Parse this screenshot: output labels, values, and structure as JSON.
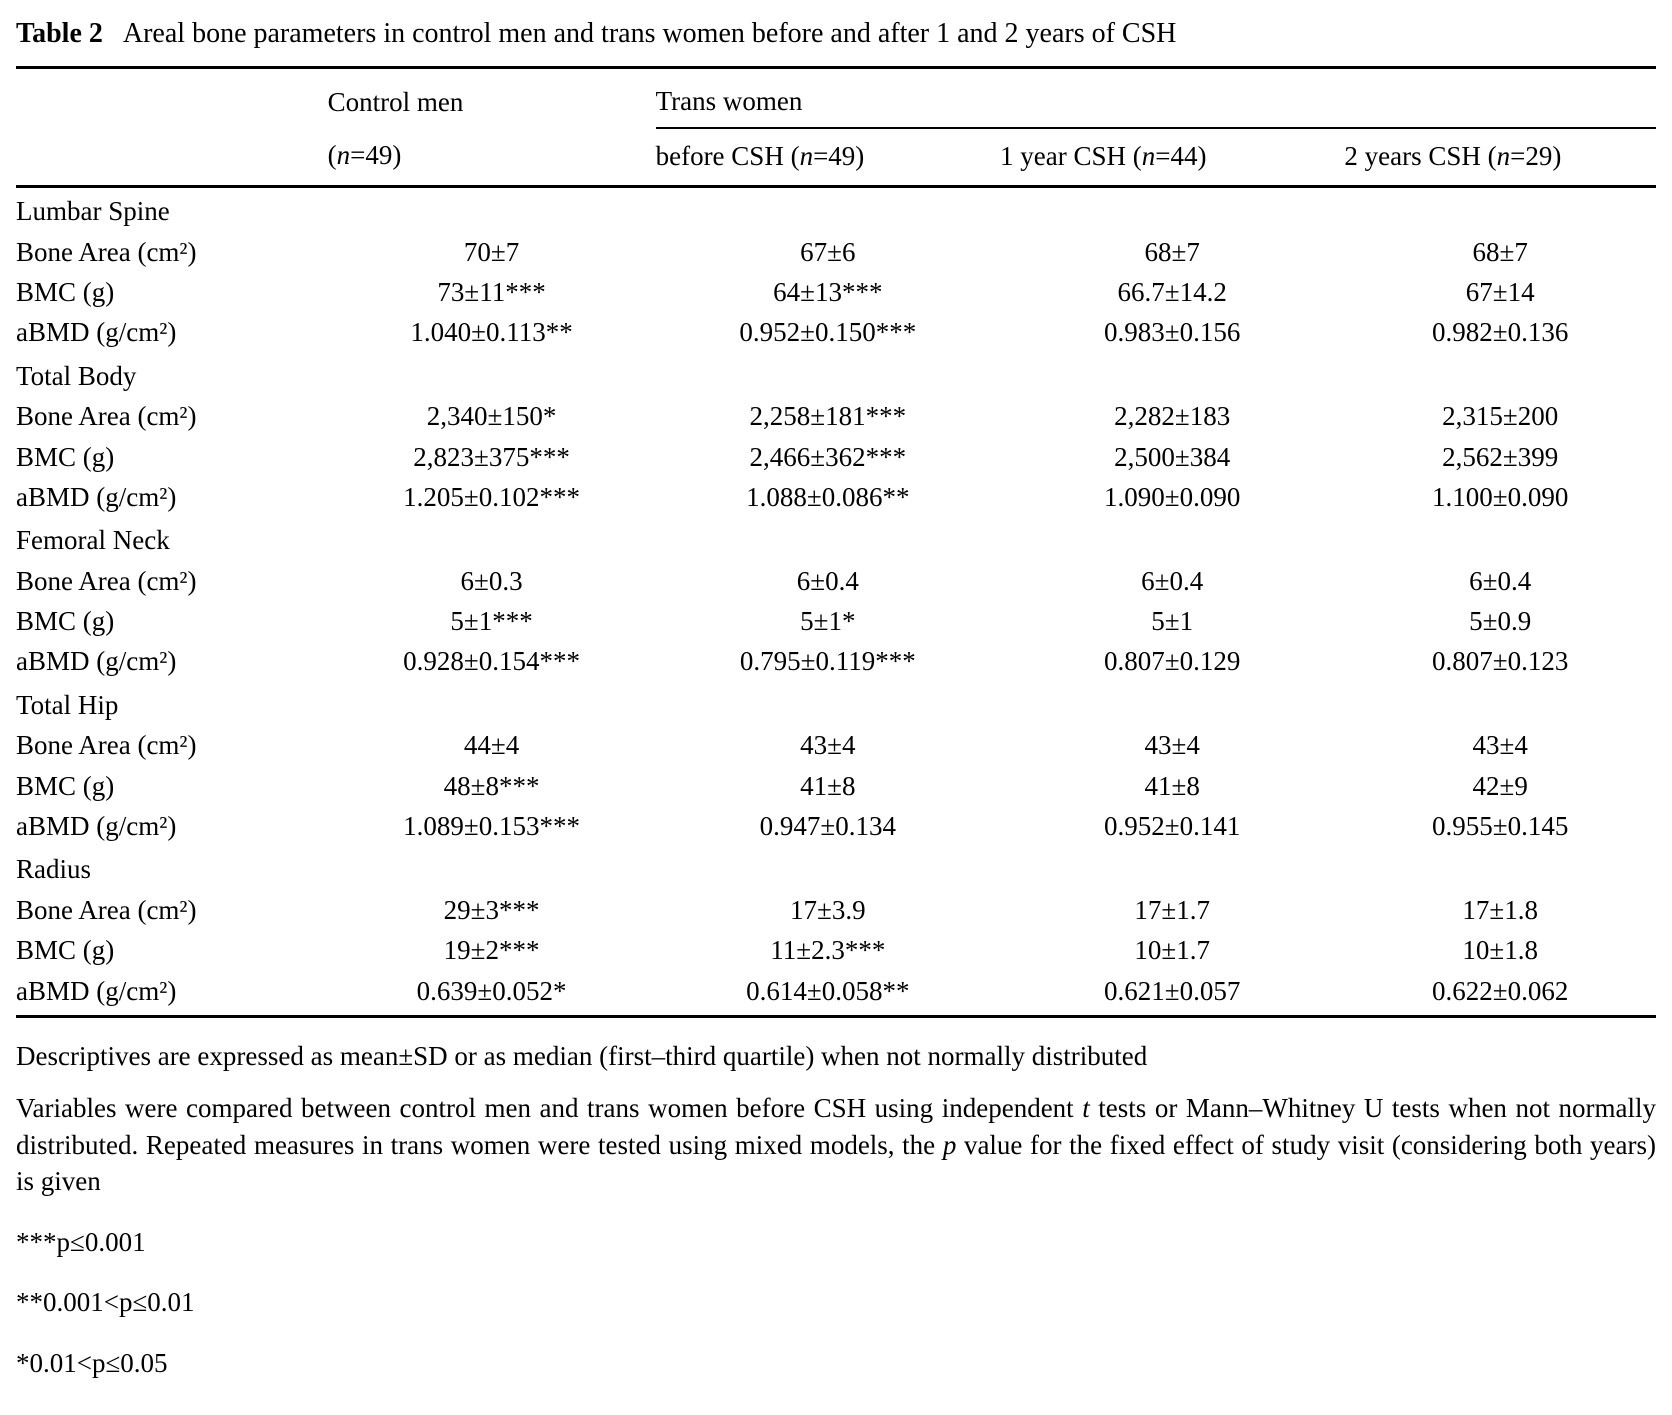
{
  "title": {
    "label": "Table 2",
    "text": "Areal bone parameters in control men and trans women before and after 1 and 2 years of CSH"
  },
  "header": {
    "group_control": "Control men",
    "group_trans": "Trans women",
    "cols": [
      {
        "pre": "(",
        "n": "n",
        "post": "=49)"
      },
      {
        "pre": "before CSH (",
        "n": "n",
        "post": "=49)"
      },
      {
        "pre": "1 year CSH (",
        "n": "n",
        "post": "=44)"
      },
      {
        "pre": "2 years CSH (",
        "n": "n",
        "post": "=29)"
      }
    ]
  },
  "sections": [
    {
      "name": "Lumbar Spine",
      "rows": [
        {
          "label": "Bone Area (cm²)",
          "values": [
            "70±7",
            "67±6",
            "68±7",
            "68±7"
          ]
        },
        {
          "label": "BMC (g)",
          "values": [
            "73±11***",
            "64±13***",
            "66.7±14.2",
            "67±14"
          ]
        },
        {
          "label": "aBMD (g/cm²)",
          "values": [
            "1.040±0.113**",
            "0.952±0.150***",
            "0.983±0.156",
            "0.982±0.136"
          ]
        }
      ]
    },
    {
      "name": "Total Body",
      "rows": [
        {
          "label": "Bone Area (cm²)",
          "values": [
            "2,340±150*",
            "2,258±181***",
            "2,282±183",
            "2,315±200"
          ]
        },
        {
          "label": "BMC (g)",
          "values": [
            "2,823±375***",
            "2,466±362***",
            "2,500±384",
            "2,562±399"
          ]
        },
        {
          "label": "aBMD (g/cm²)",
          "values": [
            "1.205±0.102***",
            "1.088±0.086**",
            "1.090±0.090",
            "1.100±0.090"
          ]
        }
      ]
    },
    {
      "name": "Femoral Neck",
      "rows": [
        {
          "label": "Bone Area (cm²)",
          "values": [
            "6±0.3",
            "6±0.4",
            "6±0.4",
            "6±0.4"
          ]
        },
        {
          "label": "BMC (g)",
          "values": [
            "5±1***",
            "5±1*",
            "5±1",
            "5±0.9"
          ]
        },
        {
          "label": "aBMD (g/cm²)",
          "values": [
            "0.928±0.154***",
            "0.795±0.119***",
            "0.807±0.129",
            "0.807±0.123"
          ]
        }
      ]
    },
    {
      "name": "Total Hip",
      "rows": [
        {
          "label": "Bone Area (cm²)",
          "values": [
            "44±4",
            "43±4",
            "43±4",
            "43±4"
          ]
        },
        {
          "label": "BMC (g)",
          "values": [
            "48±8***",
            "41±8",
            "41±8",
            "42±9"
          ]
        },
        {
          "label": "aBMD (g/cm²)",
          "values": [
            "1.089±0.153***",
            "0.947±0.134",
            "0.952±0.141",
            "0.955±0.145"
          ]
        }
      ]
    },
    {
      "name": "Radius",
      "rows": [
        {
          "label": "Bone Area (cm²)",
          "values": [
            "29±3***",
            "17±3.9",
            "17±1.7",
            "17±1.8"
          ]
        },
        {
          "label": "BMC (g)",
          "values": [
            "19±2***",
            "11±2.3***",
            "10±1.7",
            "10±1.8"
          ]
        },
        {
          "label": "aBMD (g/cm²)",
          "values": [
            "0.639±0.052*",
            "0.614±0.058**",
            "0.621±0.057",
            "0.622±0.062"
          ]
        }
      ]
    }
  ],
  "footnotes": {
    "descriptives": "Descriptives are expressed as mean±SD or as median (first–third quartile) when not normally distributed",
    "compare": [
      "Variables were compared between control men and trans women before CSH using independent ",
      "t",
      " tests or Mann–Whitney U tests when not normally distributed. Repeated measures in trans women were tested using mixed models, the ",
      "p",
      " value for the fixed effect of study visit (considering both years) is given"
    ],
    "sig": [
      "***p≤0.001",
      "**0.001<p≤0.01",
      "*0.01<p≤0.05"
    ]
  }
}
